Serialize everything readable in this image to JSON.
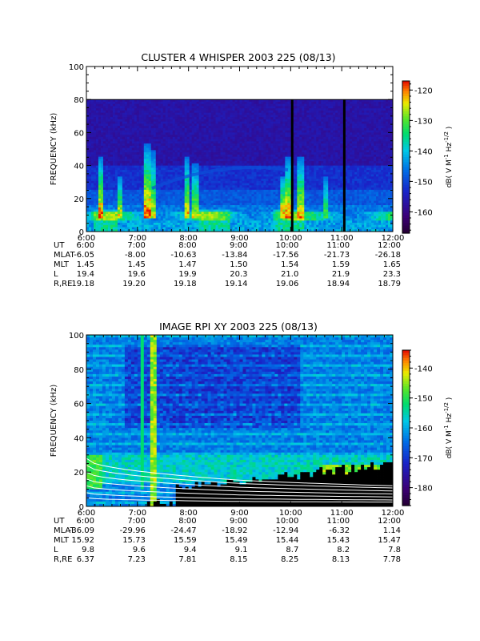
{
  "chart_data": [
    {
      "type": "heatmap",
      "title": "CLUSTER 4 WHISPER 2003 225 (08/13)",
      "ylabel": "FREQUENCY (kHz)",
      "ylim": [
        0,
        100
      ],
      "yticks": [
        "0",
        "20",
        "40",
        "60",
        "80",
        "100"
      ],
      "data_ceiling_khz": 80,
      "colorbar": {
        "label": "dB( V M⁻¹ Hz⁻¹ᐟ² )",
        "label_text": "dB( V M",
        "label_sup1": "-1",
        "label_mid": " Hz",
        "label_sup2": "-1/2",
        "label_end": ")",
        "range": [
          -167,
          -117
        ],
        "ticks": [
          "-120",
          "-130",
          "-140",
          "-150",
          "-160"
        ],
        "tick_values": [
          -120,
          -130,
          -140,
          -150,
          -160
        ]
      },
      "x_ticks": [
        "6:00",
        "7:00",
        "8:00",
        "9:00",
        "10:00",
        "11:00",
        "12:00"
      ],
      "data_gaps_ut": [
        10.03,
        11.05
      ],
      "ephemeris": [
        {
          "label": "UT",
          "values": [
            "6:00",
            "7:00",
            "8:00",
            "9:00",
            "10:00",
            "11:00",
            "12:00"
          ]
        },
        {
          "label": "MLAT",
          "values": [
            "-6.05",
            "-8.00",
            "-10.63",
            "-13.84",
            "-17.56",
            "-21.73",
            "-26.18"
          ]
        },
        {
          "label": "MLT",
          "values": [
            "1.45",
            "1.45",
            "1.47",
            "1.50",
            "1.54",
            "1.59",
            "1.65"
          ]
        },
        {
          "label": "L",
          "values": [
            "19.4",
            "19.6",
            "19.9",
            "20.3",
            "21.0",
            "21.9",
            "23.3"
          ]
        },
        {
          "label": "R,RE",
          "values": [
            "19.18",
            "19.20",
            "19.18",
            "19.14",
            "19.06",
            "18.94",
            "18.79"
          ]
        }
      ]
    },
    {
      "type": "heatmap",
      "title": "IMAGE RPI XY 2003 225 (08/13)",
      "ylabel": "FREQUENCY (kHz)",
      "ylim": [
        0,
        100
      ],
      "yticks": [
        "0",
        "20",
        "40",
        "60",
        "80",
        "100"
      ],
      "colorbar": {
        "label_text": "dB( V M",
        "label_sup1": "-1",
        "label_mid": " Hz",
        "label_sup2": "-1/2",
        "label_end": ")",
        "range": [
          -186,
          -134
        ],
        "ticks": [
          "-140",
          "-150",
          "-160",
          "-170",
          "-180"
        ],
        "tick_values": [
          -140,
          -150,
          -160,
          -170,
          -180
        ]
      },
      "x_ticks": [
        "6:00",
        "7:00",
        "8:00",
        "9:00",
        "10:00",
        "11:00",
        "12:00"
      ],
      "ephemeris": [
        {
          "label": "UT",
          "values": [
            "6:00",
            "7:00",
            "8:00",
            "9:00",
            "10:00",
            "11:00",
            "12:00"
          ]
        },
        {
          "label": "MLAT",
          "values": [
            "-36.09",
            "-29.96",
            "-24.47",
            "-18.92",
            "-12.94",
            "-6.32",
            "1.14"
          ]
        },
        {
          "label": "MLT",
          "values": [
            "15.92",
            "15.73",
            "15.59",
            "15.49",
            "15.44",
            "15.43",
            "15.47"
          ]
        },
        {
          "label": "L",
          "values": [
            "9.8",
            "9.6",
            "9.4",
            "9.1",
            "8.7",
            "8.2",
            "7.8"
          ]
        },
        {
          "label": "R,RE",
          "values": [
            "6.37",
            "7.23",
            "7.81",
            "8.15",
            "8.25",
            "8.13",
            "7.78"
          ]
        }
      ]
    }
  ]
}
